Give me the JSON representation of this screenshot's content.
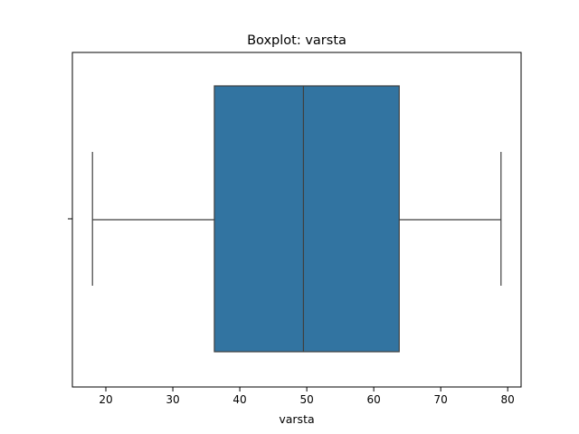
{
  "chart_data": {
    "type": "boxplot",
    "title": "Boxplot: varsta",
    "xlabel": "varsta",
    "ylabel": "",
    "xlim": [
      15.0,
      82.0
    ],
    "x_ticks": [
      20,
      30,
      40,
      50,
      60,
      70,
      80
    ],
    "orientation": "horizontal",
    "grid": false,
    "box": {
      "whisker_low": 18,
      "q1": 36.2,
      "median": 49.5,
      "q3": 63.8,
      "whisker_high": 79,
      "color": "#3274a1",
      "line_color": "#3f3f3f"
    }
  }
}
